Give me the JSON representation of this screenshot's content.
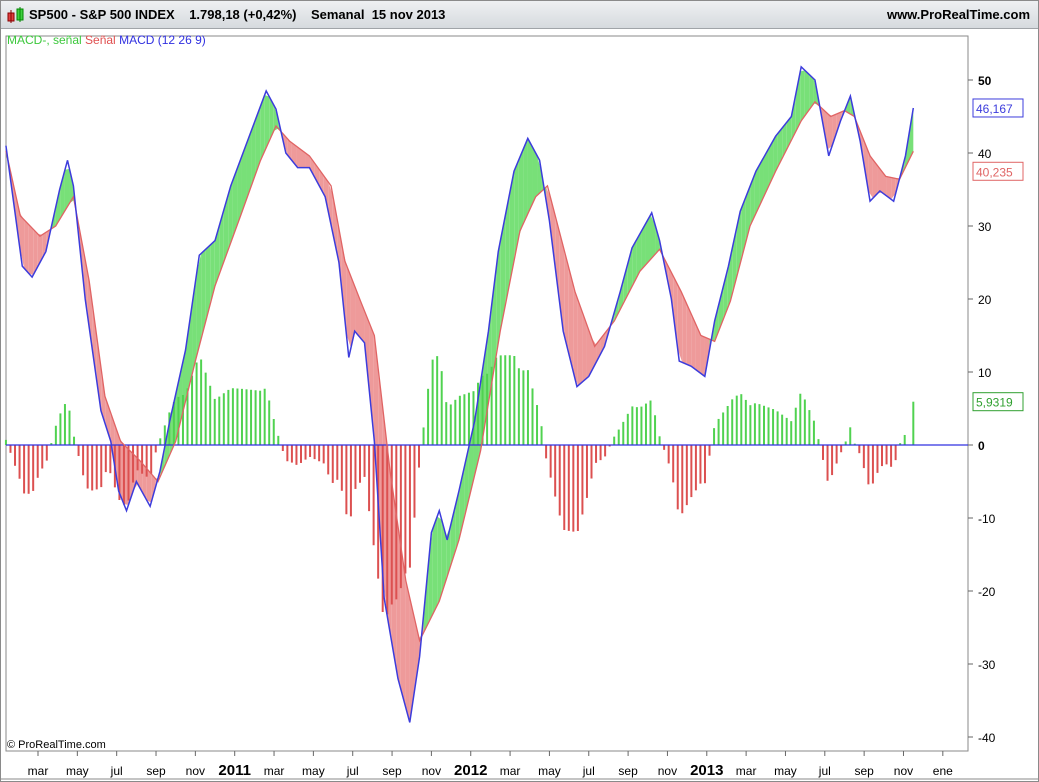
{
  "header": {
    "title": "SP500 - S&P 500 INDEX",
    "price": "1.798,18 (+0,42%)",
    "period": "Semanal",
    "date": "15 nov 2013",
    "site": "www.ProRealTime.com"
  },
  "legend": {
    "hist": "MACD-, señal",
    "signal": "Señal",
    "macd": "MACD (12 26 9)"
  },
  "copyright": "© ProRealTime.com",
  "colors": {
    "macd": "#3c3cdc",
    "signal": "#e06464",
    "up": "#50d250",
    "down": "#dc5050",
    "upFill": "#78e078",
    "downFill": "#ee9a9a"
  },
  "chart_data": {
    "type": "line",
    "title": "MACD (12 26 9)",
    "xunit": "months since Jan 2010",
    "xlim": [
      0.37,
      48.2
    ],
    "ylim": [
      -41,
      54
    ],
    "yticks": [
      50,
      40,
      30,
      20,
      10,
      0,
      -10,
      -20,
      -30,
      -40
    ],
    "xticks": [
      {
        "m": 2,
        "l": "mar"
      },
      {
        "m": 4,
        "l": "may"
      },
      {
        "m": 6,
        "l": "jul"
      },
      {
        "m": 8,
        "l": "sep"
      },
      {
        "m": 10,
        "l": "nov"
      },
      {
        "m": 12,
        "l": "2011",
        "y": 1
      },
      {
        "m": 14,
        "l": "mar"
      },
      {
        "m": 16,
        "l": "may"
      },
      {
        "m": 18,
        "l": "jul"
      },
      {
        "m": 20,
        "l": "sep"
      },
      {
        "m": 22,
        "l": "nov"
      },
      {
        "m": 24,
        "l": "2012",
        "y": 1
      },
      {
        "m": 26,
        "l": "mar"
      },
      {
        "m": 28,
        "l": "may"
      },
      {
        "m": 30,
        "l": "jul"
      },
      {
        "m": 32,
        "l": "sep"
      },
      {
        "m": 34,
        "l": "nov"
      },
      {
        "m": 36,
        "l": "2013",
        "y": 1
      },
      {
        "m": 38,
        "l": "mar"
      },
      {
        "m": 40,
        "l": "may"
      },
      {
        "m": 42,
        "l": "jul"
      },
      {
        "m": 44,
        "l": "sep"
      },
      {
        "m": 46,
        "l": "nov"
      },
      {
        "m": 48,
        "l": "ene"
      }
    ],
    "series": [
      {
        "name": "MACD",
        "points": [
          [
            0.37,
            41
          ],
          [
            1.2,
            24.5
          ],
          [
            1.7,
            23
          ],
          [
            2.4,
            26.5
          ],
          [
            3.1,
            35
          ],
          [
            3.5,
            39
          ],
          [
            3.8,
            35.5
          ],
          [
            4.4,
            20
          ],
          [
            5.2,
            4.7
          ],
          [
            5.7,
            0.5
          ],
          [
            6.1,
            -6.3
          ],
          [
            6.5,
            -9
          ],
          [
            7,
            -5
          ],
          [
            7.7,
            -8.4
          ],
          [
            8.2,
            -3.6
          ],
          [
            8.7,
            3.3
          ],
          [
            9.5,
            13
          ],
          [
            10.2,
            26
          ],
          [
            11,
            28
          ],
          [
            11.8,
            35.5
          ],
          [
            12.7,
            42
          ],
          [
            13.6,
            48.5
          ],
          [
            14.1,
            46
          ],
          [
            14.6,
            40
          ],
          [
            15.2,
            38
          ],
          [
            15.8,
            38
          ],
          [
            16.6,
            34
          ],
          [
            17.3,
            25
          ],
          [
            17.8,
            12
          ],
          [
            18.1,
            15.6
          ],
          [
            18.6,
            14
          ],
          [
            19.1,
            0.5
          ],
          [
            19.6,
            -21
          ],
          [
            20.3,
            -32
          ],
          [
            20.9,
            -38
          ],
          [
            21.4,
            -29
          ],
          [
            22,
            -12
          ],
          [
            22.4,
            -9
          ],
          [
            22.8,
            -13
          ],
          [
            23.4,
            -6.3
          ],
          [
            24.2,
            3.3
          ],
          [
            24.9,
            15.6
          ],
          [
            25.4,
            26.5
          ],
          [
            26.2,
            37.5
          ],
          [
            26.9,
            42
          ],
          [
            27.5,
            39
          ],
          [
            28,
            30.7
          ],
          [
            28.7,
            15.6
          ],
          [
            29.4,
            8
          ],
          [
            30,
            9.4
          ],
          [
            30.8,
            13.5
          ],
          [
            31.6,
            21
          ],
          [
            32.2,
            27
          ],
          [
            33.2,
            31.8
          ],
          [
            33.6,
            28
          ],
          [
            34.2,
            20
          ],
          [
            34.6,
            11.5
          ],
          [
            35.2,
            10.8
          ],
          [
            35.9,
            9.4
          ],
          [
            36.4,
            17
          ],
          [
            37.1,
            24.5
          ],
          [
            37.7,
            32
          ],
          [
            38.5,
            37.5
          ],
          [
            39.5,
            42.3
          ],
          [
            40.3,
            45
          ],
          [
            40.8,
            51.8
          ],
          [
            41.5,
            50
          ],
          [
            42.2,
            39.6
          ],
          [
            42.8,
            44.4
          ],
          [
            43.3,
            47.8
          ],
          [
            43.8,
            41.6
          ],
          [
            44.3,
            33.4
          ],
          [
            44.8,
            34.8
          ],
          [
            45.5,
            33.4
          ],
          [
            46.1,
            39.6
          ],
          [
            46.5,
            46.167
          ]
        ]
      },
      {
        "name": "Señal",
        "points": [
          [
            0.37,
            40.3
          ],
          [
            1.1,
            31.4
          ],
          [
            2.1,
            28.6
          ],
          [
            2.9,
            30
          ],
          [
            3.8,
            34
          ],
          [
            4.6,
            22.5
          ],
          [
            5.4,
            6.7
          ],
          [
            6.2,
            0.5
          ],
          [
            7.2,
            -2.2
          ],
          [
            8.1,
            -5
          ],
          [
            9,
            0.5
          ],
          [
            10,
            11.5
          ],
          [
            11,
            21.8
          ],
          [
            12.3,
            31.4
          ],
          [
            13.3,
            38.9
          ],
          [
            14.1,
            43.7
          ],
          [
            14.8,
            41.6
          ],
          [
            15.8,
            39.6
          ],
          [
            16.9,
            35.5
          ],
          [
            17.6,
            25.2
          ],
          [
            18.4,
            19.7
          ],
          [
            19.1,
            15
          ],
          [
            19.9,
            -3.6
          ],
          [
            20.7,
            -18.6
          ],
          [
            21.4,
            -26.8
          ],
          [
            22.4,
            -21.4
          ],
          [
            23.4,
            -13
          ],
          [
            24.5,
            -0.8
          ],
          [
            25.5,
            15.6
          ],
          [
            26.5,
            29.3
          ],
          [
            27.3,
            34
          ],
          [
            27.9,
            35.5
          ],
          [
            28.5,
            29.3
          ],
          [
            29.3,
            21
          ],
          [
            30.3,
            13.5
          ],
          [
            31.3,
            17
          ],
          [
            32.6,
            23.8
          ],
          [
            33.6,
            26.8
          ],
          [
            34.7,
            21
          ],
          [
            35.7,
            15
          ],
          [
            36.4,
            14.2
          ],
          [
            37.2,
            19.7
          ],
          [
            38.2,
            30
          ],
          [
            39.5,
            37.5
          ],
          [
            40.8,
            44.4
          ],
          [
            41.5,
            47
          ],
          [
            42.3,
            45
          ],
          [
            43,
            45.8
          ],
          [
            43.5,
            45
          ],
          [
            44.3,
            39.6
          ],
          [
            45.1,
            36.8
          ],
          [
            45.8,
            36.4
          ],
          [
            46.5,
            40.235
          ]
        ]
      }
    ],
    "last_values": {
      "macd": "46,167",
      "signal": "40,235",
      "hist": "5,9319"
    }
  }
}
